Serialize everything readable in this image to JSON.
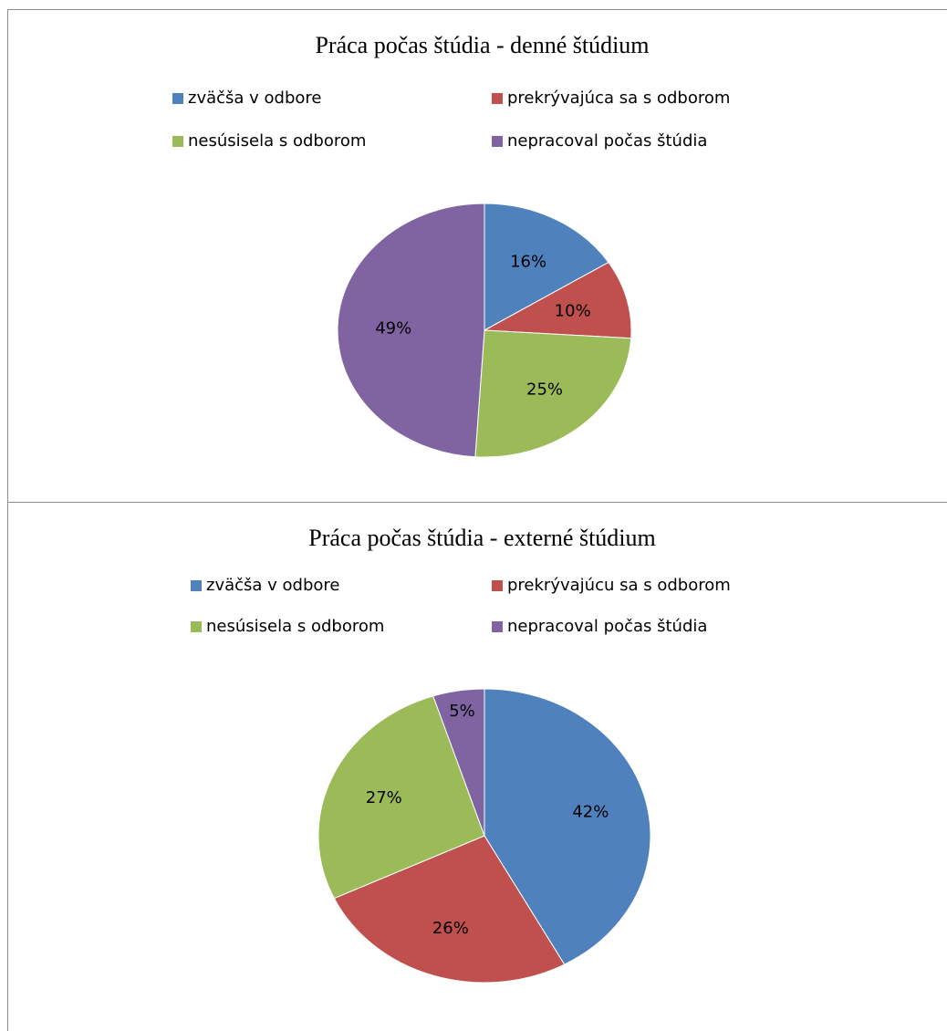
{
  "chart_data": [
    {
      "type": "pie",
      "title": "Práca počas štúdia - denné štúdium",
      "legend_position": "top",
      "slices": [
        {
          "name": "zväčša v odbore",
          "value": 16,
          "label": "16%",
          "color": "#4F81BD"
        },
        {
          "name": "prekrývajúca sa s odborom",
          "value": 10,
          "label": "10%",
          "color": "#C0504D"
        },
        {
          "name": "nesúsisela s odborom",
          "value": 25,
          "label": "25%",
          "color": "#9BBB59"
        },
        {
          "name": "nepracoval počas štúdia",
          "value": 49,
          "label": "49%",
          "color": "#8064A2"
        }
      ]
    },
    {
      "type": "pie",
      "title": "Práca počas štúdia - externé štúdium",
      "legend_position": "top",
      "slices": [
        {
          "name": "zväčša v odbore",
          "value": 42,
          "label": "42%",
          "color": "#4F81BD"
        },
        {
          "name": "prekrývajúcu sa s odborom",
          "value": 26,
          "label": "26%",
          "color": "#C0504D"
        },
        {
          "name": "nesúsisela s odborom",
          "value": 27,
          "label": "27%",
          "color": "#9BBB59"
        },
        {
          "name": "nepracoval počas štúdia",
          "value": 5,
          "label": "5%",
          "color": "#8064A2"
        }
      ]
    }
  ]
}
